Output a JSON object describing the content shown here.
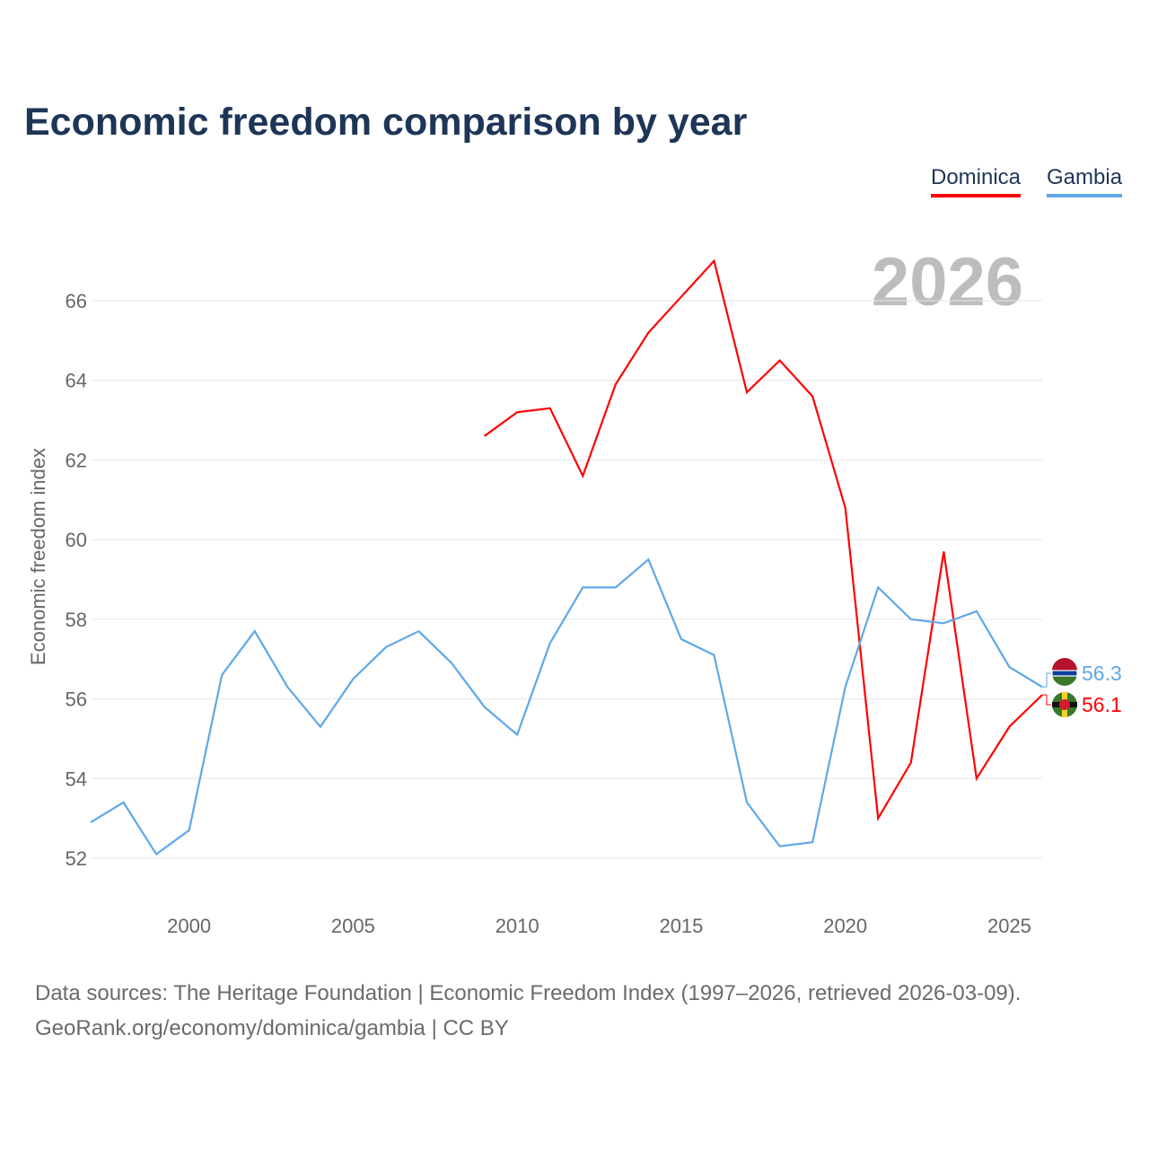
{
  "chart_data": {
    "type": "line",
    "title": "Economic freedom comparison by year",
    "xlabel": "",
    "ylabel": "Economic freedom index",
    "xlim": [
      1997,
      2026
    ],
    "ylim": [
      51.0,
      67.5
    ],
    "x_ticks": [
      2000,
      2005,
      2010,
      2015,
      2020,
      2025
    ],
    "y_ticks": [
      52,
      54,
      56,
      58,
      60,
      62,
      64,
      66
    ],
    "grid": true,
    "legend_placement": "top-right",
    "year_watermark": "2026",
    "series": [
      {
        "name": "Dominica",
        "color": "#ff0000",
        "end_label": "56.1",
        "x": [
          2009,
          2010,
          2011,
          2012,
          2013,
          2014,
          2015,
          2016,
          2017,
          2018,
          2019,
          2020,
          2021,
          2022,
          2023,
          2024,
          2025,
          2026
        ],
        "values": [
          62.6,
          63.2,
          63.3,
          61.6,
          63.9,
          65.2,
          66.1,
          67.0,
          63.7,
          64.5,
          63.6,
          60.8,
          53.0,
          54.4,
          59.7,
          54.0,
          55.3,
          56.1
        ]
      },
      {
        "name": "Gambia",
        "color": "#5fa8e8",
        "end_label": "56.3",
        "x": [
          1997,
          1998,
          1999,
          2000,
          2001,
          2002,
          2003,
          2004,
          2005,
          2006,
          2007,
          2008,
          2009,
          2010,
          2011,
          2012,
          2013,
          2014,
          2015,
          2016,
          2017,
          2018,
          2019,
          2020,
          2021,
          2022,
          2023,
          2024,
          2025,
          2026
        ],
        "values": [
          52.9,
          53.4,
          52.1,
          52.7,
          56.6,
          57.7,
          56.3,
          55.3,
          56.5,
          57.3,
          57.7,
          56.9,
          55.8,
          55.1,
          57.4,
          58.8,
          58.8,
          59.5,
          57.5,
          57.1,
          53.4,
          52.3,
          52.4,
          56.3,
          58.8,
          58.0,
          57.9,
          58.2,
          56.8,
          56.3
        ]
      }
    ]
  },
  "footer": {
    "line1": "Data sources: The Heritage Foundation | Economic Freedom Index (1997–2026, retrieved 2026-03-09).",
    "line2": "GeoRank.org/economy/dominica/gambia | CC BY"
  }
}
